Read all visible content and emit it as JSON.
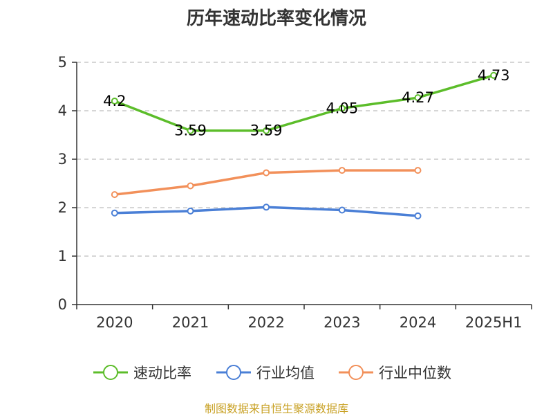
{
  "title": "历年速动比率变化情况",
  "source": "制图数据来自恒生聚源数据库",
  "chart_data": {
    "type": "line",
    "categories": [
      "2020",
      "2021",
      "2022",
      "2023",
      "2024",
      "2025H1"
    ],
    "y_ticks": [
      "0",
      "1",
      "2",
      "3",
      "4",
      "5"
    ],
    "ylim": [
      0,
      5
    ],
    "grid": true,
    "legend_position": "bottom",
    "series": [
      {
        "name": "速动比率",
        "color": "#5cbd2a",
        "show_labels": true,
        "labels": [
          "4.2",
          "3.59",
          "3.59",
          "4.05",
          "4.27",
          "4.73"
        ],
        "values": [
          4.2,
          3.59,
          3.59,
          4.05,
          4.27,
          4.73
        ]
      },
      {
        "name": "行业均值",
        "color": "#4a7fd6",
        "show_labels": false,
        "values": [
          1.89,
          1.93,
          2.01,
          1.95,
          1.83,
          null
        ]
      },
      {
        "name": "行业中位数",
        "color": "#f2905a",
        "show_labels": false,
        "values": [
          2.27,
          2.45,
          2.72,
          2.77,
          2.77,
          null
        ]
      }
    ]
  }
}
